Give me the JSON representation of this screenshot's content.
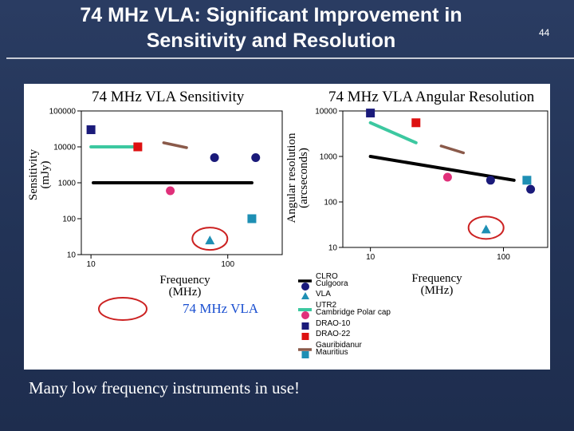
{
  "slide": {
    "title_line1": "74 MHz VLA: Significant Improvement in",
    "title_line2": "Sensitivity and Resolution",
    "number": "44",
    "caption": "Many low frequency instruments in use!"
  },
  "figure": {
    "marker_key_label": "74 MHz VLA",
    "highlight_color": "#cc2222"
  },
  "chart_data": [
    {
      "type": "scatter",
      "title": "74 MHz VLA Sensitivity",
      "xlabel": "Frequency (MHz)",
      "ylabel": "Sensitivity (mJy)",
      "xscale": "log",
      "yscale": "log",
      "xlim": [
        8.5,
        250
      ],
      "ylim": [
        10,
        100000
      ],
      "xticks": [
        {
          "v": 10,
          "label": "10"
        },
        {
          "v": 100,
          "label": "100"
        }
      ],
      "yticks": [
        {
          "v": 100000,
          "label": "100000"
        },
        {
          "v": 10000,
          "label": "10000"
        },
        {
          "v": 1000,
          "label": "1000"
        },
        {
          "v": 100,
          "label": "100"
        },
        {
          "v": 10,
          "label": "10"
        }
      ],
      "series": [
        {
          "name": "CLRO",
          "kind": "line",
          "color": "#000000",
          "x": [
            10.4,
            150
          ],
          "y": [
            1000,
            1000
          ]
        },
        {
          "name": "Culgoora",
          "kind": "circle",
          "color": "#1a1a7a",
          "x": [
            80,
            160
          ],
          "y": [
            5000,
            5000
          ]
        },
        {
          "name": "VLA",
          "kind": "triangle",
          "color": "#1e8fb4",
          "x": [
            74
          ],
          "y": [
            25
          ],
          "highlight": true
        },
        {
          "name": "UTR2",
          "kind": "segment",
          "color": "#3cc8a0",
          "x": [
            10,
            22
          ],
          "y": [
            10000,
            10000
          ]
        },
        {
          "name": "Cambridge Polar cap",
          "kind": "circle",
          "color": "#e0307a",
          "x": [
            38
          ],
          "y": [
            600
          ]
        },
        {
          "name": "DRAO-10",
          "kind": "square",
          "color": "#1a1a7a",
          "x": [
            10
          ],
          "y": [
            30000
          ]
        },
        {
          "name": "DRAO-22",
          "kind": "square",
          "color": "#dd1111",
          "x": [
            22
          ],
          "y": [
            10000
          ]
        },
        {
          "name": "Gauribidanur",
          "kind": "line",
          "color": "#8a5a4a",
          "x": [
            34,
            50
          ],
          "y": [
            13000,
            9500
          ]
        },
        {
          "name": "Mauritius",
          "kind": "square",
          "color": "#1e8fb4",
          "x": [
            150
          ],
          "y": [
            100
          ]
        }
      ]
    },
    {
      "type": "scatter",
      "title": "74 MHz VLA Angular Resolution",
      "xlabel": "Frequency (MHz)",
      "ylabel": "Angular resolution (arcseconds)",
      "xscale": "log",
      "yscale": "log",
      "xlim": [
        6.2,
        215
      ],
      "ylim": [
        10,
        10000
      ],
      "xticks": [
        {
          "v": 10,
          "label": "10"
        },
        {
          "v": 100,
          "label": "100"
        }
      ],
      "yticks": [
        {
          "v": 10000,
          "label": "10000"
        },
        {
          "v": 1000,
          "label": "1000"
        },
        {
          "v": 100,
          "label": "100"
        },
        {
          "v": 10,
          "label": "10"
        }
      ],
      "series": [
        {
          "name": "CLRO",
          "kind": "line",
          "color": "#000000",
          "x": [
            10,
            120
          ],
          "y": [
            1000,
            300
          ]
        },
        {
          "name": "Culgoora",
          "kind": "circle",
          "color": "#1a1a7a",
          "x": [
            80,
            160
          ],
          "y": [
            300,
            190
          ]
        },
        {
          "name": "VLA",
          "kind": "triangle",
          "color": "#1e8fb4",
          "x": [
            74
          ],
          "y": [
            25
          ],
          "highlight": true
        },
        {
          "name": "UTR2",
          "kind": "segment",
          "color": "#3cc8a0",
          "x": [
            10,
            22
          ],
          "y": [
            5500,
            2000
          ]
        },
        {
          "name": "Cambridge Polar cap",
          "kind": "circle",
          "color": "#e0307a",
          "x": [
            38
          ],
          "y": [
            350
          ]
        },
        {
          "name": "DRAO-10",
          "kind": "square",
          "color": "#1a1a7a",
          "x": [
            10
          ],
          "y": [
            9000
          ]
        },
        {
          "name": "DRAO-22",
          "kind": "square",
          "color": "#dd1111",
          "x": [
            22
          ],
          "y": [
            5500
          ]
        },
        {
          "name": "Gauribidanur",
          "kind": "line",
          "color": "#8a5a4a",
          "x": [
            34,
            50
          ],
          "y": [
            1700,
            1200
          ]
        },
        {
          "name": "Mauritius",
          "kind": "square",
          "color": "#1e8fb4",
          "x": [
            150
          ],
          "y": [
            300
          ]
        }
      ]
    }
  ]
}
